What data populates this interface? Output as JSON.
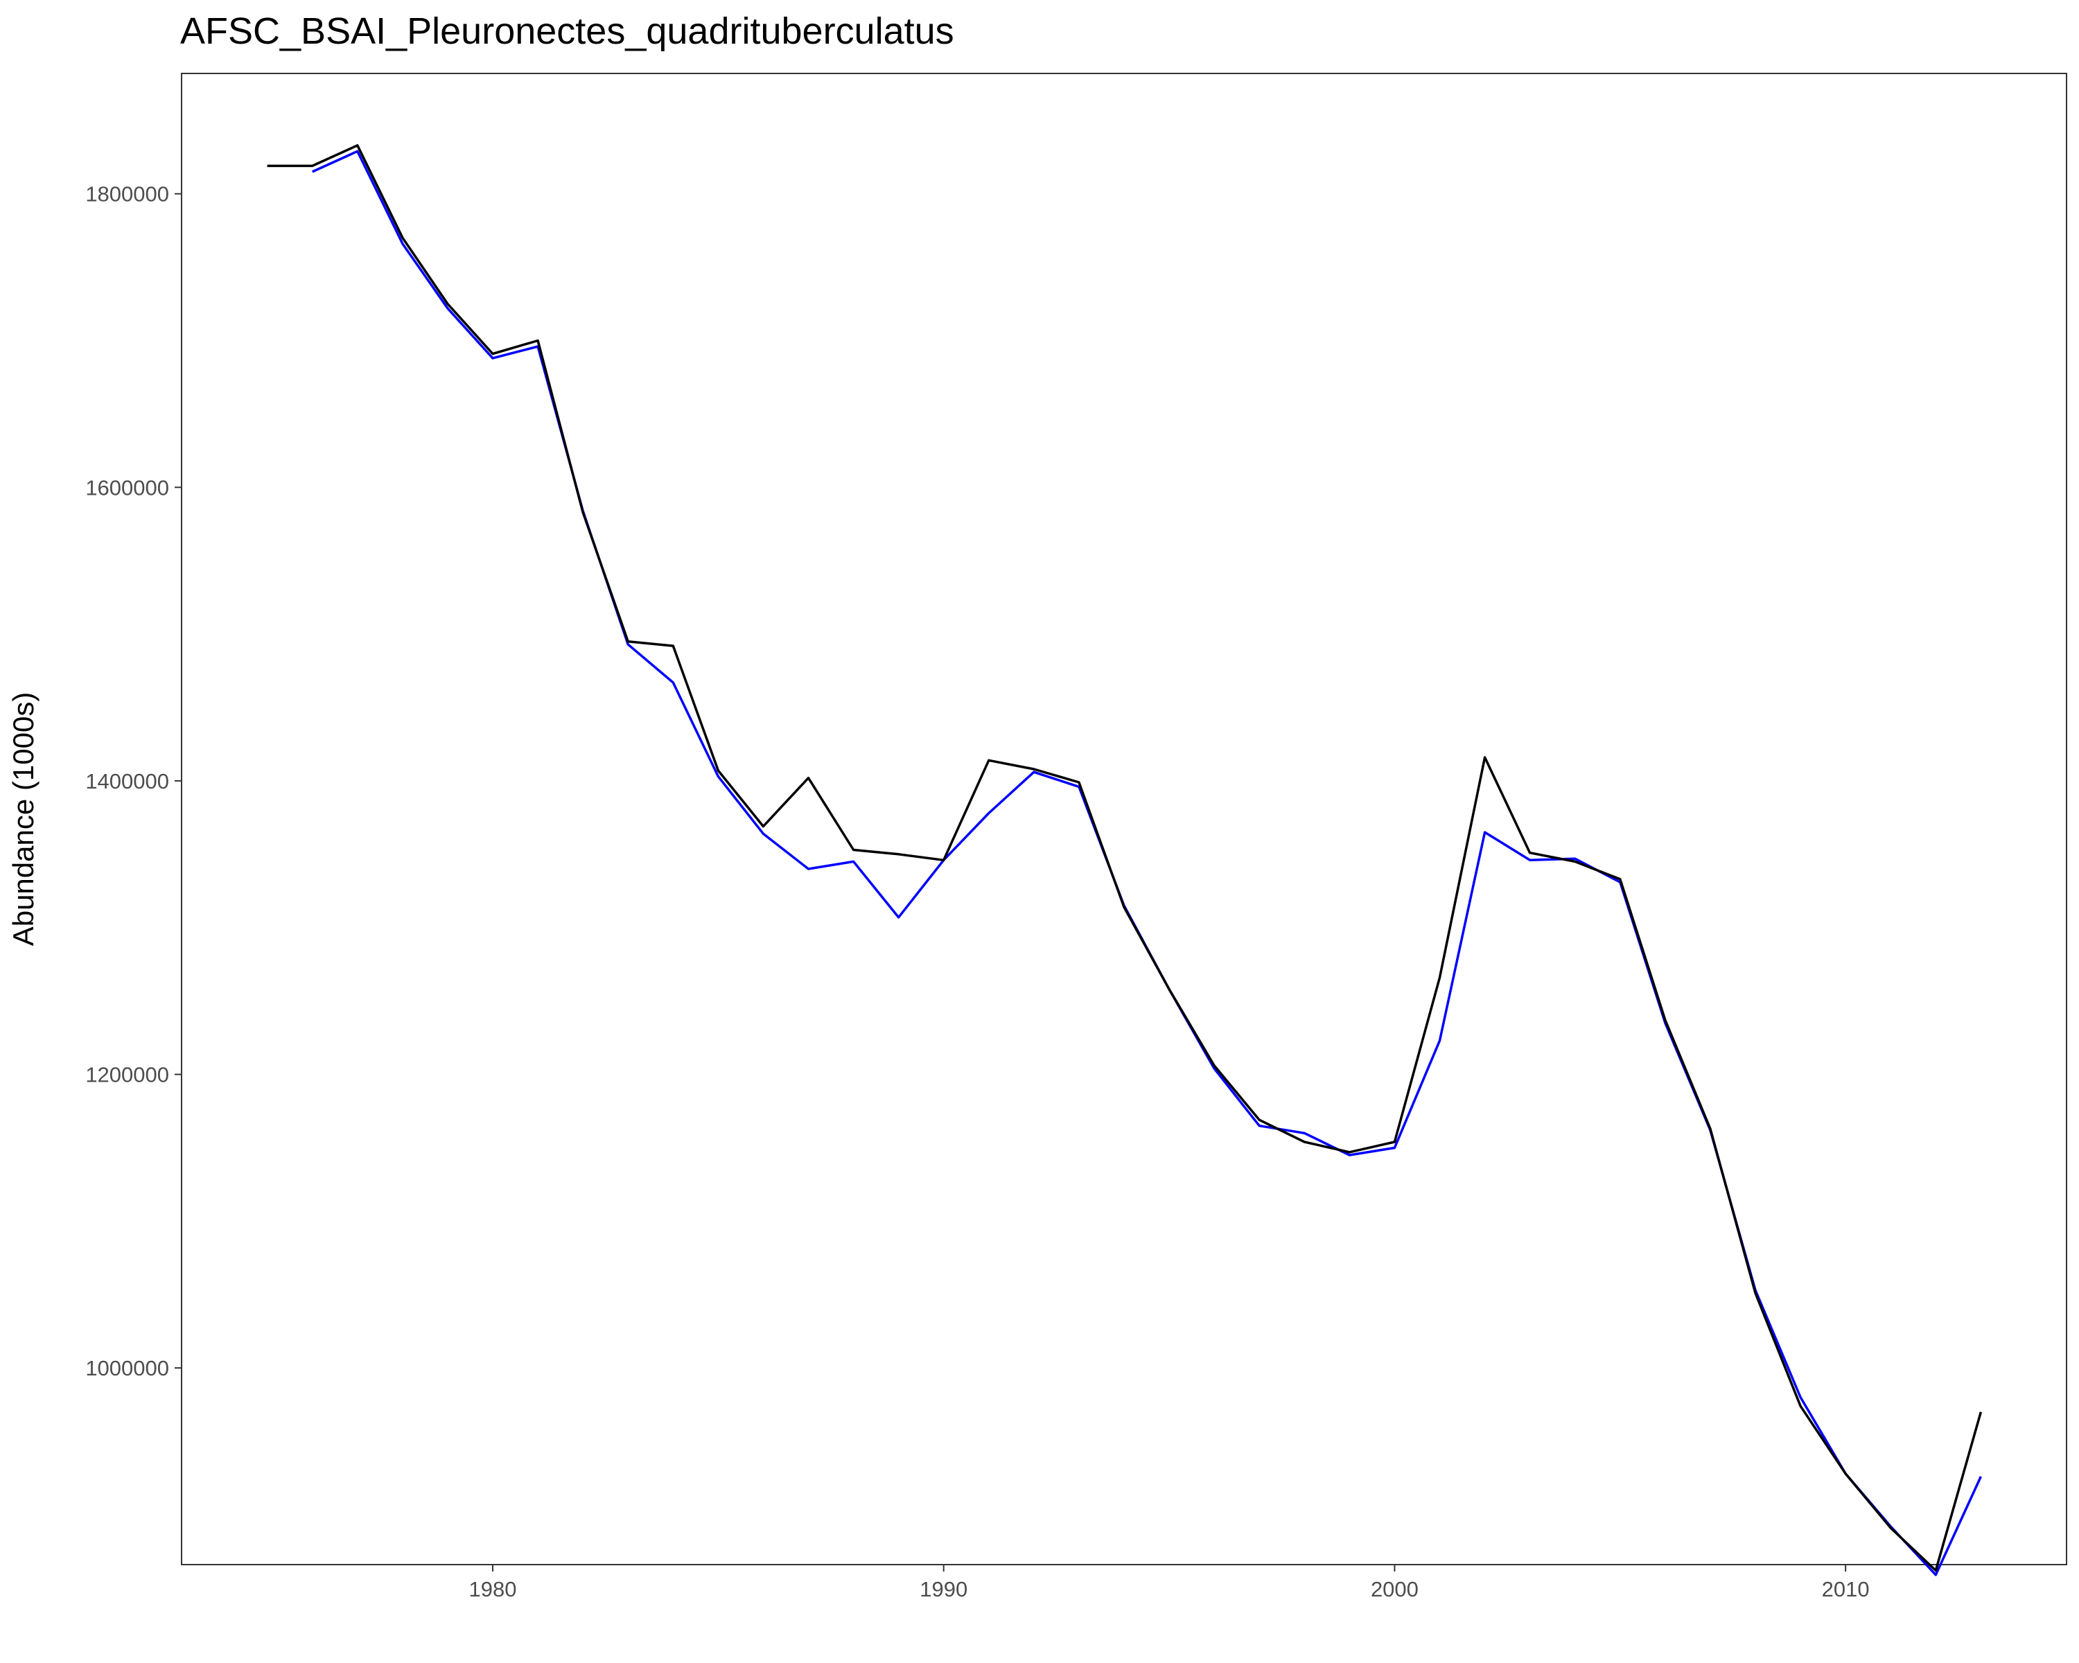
{
  "chart_data": {
    "type": "line",
    "title": "AFSC_BSAI_Pleuronectes_quadrituberculatus",
    "xlabel": "",
    "ylabel": "Abundance (1000s)",
    "xlim": [
      1973.1,
      2014.9
    ],
    "ylim": [
      866000,
      1882000
    ],
    "x_ticks": [
      1980,
      1990,
      2000,
      2010
    ],
    "y_ticks": [
      1000000,
      1200000,
      1400000,
      1600000,
      1800000
    ],
    "x_tick_labels": [
      "1980",
      "1990",
      "2000",
      "2010"
    ],
    "y_tick_labels": [
      "1000000",
      "1200000",
      "1400000",
      "1600000",
      "1800000"
    ],
    "grid": false,
    "series": [
      {
        "color": "#000000",
        "x": [
          1975,
          1976,
          1977,
          1978,
          1979,
          1980,
          1981,
          1982,
          1983,
          1984,
          1985,
          1986,
          1987,
          1988,
          1989,
          1990,
          1991,
          1992,
          1993,
          1994,
          1995,
          1996,
          1997,
          1998,
          1999,
          2000,
          2001,
          2002,
          2003,
          2004,
          2005,
          2006,
          2007,
          2008,
          2009,
          2010,
          2011,
          2012,
          2013
        ],
        "values": [
          1819000,
          1819000,
          1833000,
          1770000,
          1725000,
          1691000,
          1700000,
          1583000,
          1495000,
          1492000,
          1407000,
          1369000,
          1402000,
          1353000,
          1350000,
          1346000,
          1414000,
          1408000,
          1399000,
          1314000,
          1258000,
          1206000,
          1169000,
          1154000,
          1147000,
          1154000,
          1266000,
          1416000,
          1351000,
          1345000,
          1333000,
          1237000,
          1163000,
          1051000,
          974000,
          928000,
          891000,
          862000,
          970000
        ]
      },
      {
        "color": "#0000ff",
        "x": [
          1976,
          1977,
          1978,
          1979,
          1980,
          1981,
          1982,
          1983,
          1984,
          1985,
          1986,
          1987,
          1988,
          1989,
          1990,
          1991,
          1992,
          1993,
          1994,
          1995,
          1996,
          1997,
          1998,
          1999,
          2000,
          2001,
          2002,
          2003,
          2004,
          2005,
          2006,
          2007,
          2008,
          2009,
          2010,
          2011,
          2012,
          2013
        ],
        "values": [
          1815000,
          1829000,
          1766000,
          1722000,
          1688000,
          1696000,
          1584000,
          1493000,
          1467000,
          1403000,
          1364000,
          1340000,
          1345000,
          1307000,
          1346000,
          1378000,
          1406000,
          1396000,
          1315000,
          1258000,
          1204000,
          1165000,
          1160000,
          1145000,
          1150000,
          1223000,
          1365000,
          1346000,
          1347000,
          1331000,
          1235000,
          1162000,
          1053000,
          980000,
          928000,
          892000,
          859000,
          926000
        ]
      }
    ]
  }
}
